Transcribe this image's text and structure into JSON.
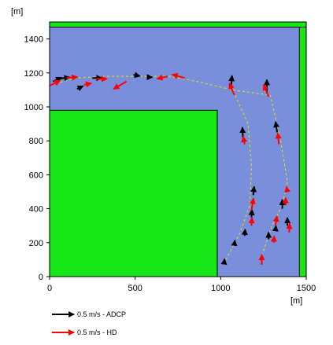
{
  "chart_data": {
    "type": "vector-field",
    "xunit": "[m]",
    "yunit": "[m]",
    "xlim": [
      0,
      1500
    ],
    "ylim": [
      0,
      1500
    ],
    "xticks": [
      0,
      500,
      1000,
      1500
    ],
    "yticks": [
      0,
      200,
      400,
      600,
      800,
      1000,
      1200,
      1400
    ],
    "domain": {
      "land_color": "#17e617",
      "water_color": "#7a8fdc",
      "land_blocks": [
        {
          "x": [
            0,
            980
          ],
          "y": [
            0,
            980
          ]
        },
        {
          "x": [
            1460,
            1500
          ],
          "y": [
            0,
            1500
          ]
        },
        {
          "x": [
            0,
            1500
          ],
          "y": [
            1470,
            1500
          ]
        }
      ]
    },
    "transects": [
      [
        [
          10,
          1130
        ],
        [
          150,
          1170
        ],
        [
          330,
          1180
        ],
        [
          520,
          1180
        ],
        [
          700,
          1180
        ],
        [
          860,
          1150
        ],
        [
          1070,
          1100
        ],
        [
          1280,
          1070
        ]
      ],
      [
        [
          1030,
          100
        ],
        [
          1110,
          250
        ],
        [
          1170,
          420
        ],
        [
          1180,
          650
        ],
        [
          1160,
          900
        ],
        [
          1075,
          1090
        ]
      ],
      [
        [
          1250,
          150
        ],
        [
          1300,
          300
        ],
        [
          1360,
          420
        ],
        [
          1390,
          560
        ],
        [
          1350,
          800
        ],
        [
          1290,
          1070
        ]
      ]
    ],
    "transect_color": "#e6e600",
    "series": [
      {
        "name": "0.5 m/s - ADCP",
        "color": "#000000",
        "vectors": [
          {
            "x": 20,
            "y": 1150,
            "u": 0.17,
            "v": 0.08
          },
          {
            "x": 50,
            "y": 1165,
            "u": 0.23,
            "v": 0.03
          },
          {
            "x": 160,
            "y": 1105,
            "u": 0.12,
            "v": 0.06
          },
          {
            "x": 250,
            "y": 1170,
            "u": 0.19,
            "v": 0.0
          },
          {
            "x": 490,
            "y": 1190,
            "u": 0.13,
            "v": -0.03
          },
          {
            "x": 580,
            "y": 1175,
            "u": 0.07,
            "v": 0.0
          },
          {
            "x": 1060,
            "y": 1110,
            "u": 0.02,
            "v": 0.25
          },
          {
            "x": 1270,
            "y": 1080,
            "u": 0.0,
            "v": 0.27
          },
          {
            "x": 1130,
            "y": 820,
            "u": -0.01,
            "v": 0.2
          },
          {
            "x": 1330,
            "y": 850,
            "u": -0.03,
            "v": 0.21
          },
          {
            "x": 1190,
            "y": 480,
            "u": 0.02,
            "v": 0.17
          },
          {
            "x": 1180,
            "y": 350,
            "u": 0.01,
            "v": 0.15
          },
          {
            "x": 1360,
            "y": 400,
            "u": 0.0,
            "v": 0.18
          },
          {
            "x": 1020,
            "y": 80,
            "u": 0.01,
            "v": 0.08
          },
          {
            "x": 1080,
            "y": 190,
            "u": 0.01,
            "v": 0.08
          },
          {
            "x": 1140,
            "y": 240,
            "u": 0.01,
            "v": 0.13
          },
          {
            "x": 1280,
            "y": 220,
            "u": 0.0,
            "v": 0.14
          },
          {
            "x": 1320,
            "y": 270,
            "u": 0.01,
            "v": 0.1
          },
          {
            "x": 1390,
            "y": 300,
            "u": 0.0,
            "v": 0.16
          }
        ]
      },
      {
        "name": "0.5 m/s - HD",
        "color": "#ff0000",
        "vectors": [
          {
            "x": 0,
            "y": 1125,
            "u": 0.21,
            "v": 0.1
          },
          {
            "x": 100,
            "y": 1170,
            "u": 0.21,
            "v": 0.02
          },
          {
            "x": 200,
            "y": 1130,
            "u": 0.15,
            "v": 0.03
          },
          {
            "x": 270,
            "y": 1165,
            "u": 0.22,
            "v": 0.0
          },
          {
            "x": 450,
            "y": 1150,
            "u": -0.26,
            "v": -0.15
          },
          {
            "x": 790,
            "y": 1170,
            "u": -0.25,
            "v": 0.07
          },
          {
            "x": 690,
            "y": 1180,
            "u": -0.21,
            "v": -0.05
          },
          {
            "x": 1080,
            "y": 1070,
            "u": -0.1,
            "v": 0.23
          },
          {
            "x": 1280,
            "y": 1060,
            "u": -0.1,
            "v": 0.24
          },
          {
            "x": 1140,
            "y": 780,
            "u": -0.03,
            "v": 0.15
          },
          {
            "x": 1340,
            "y": 780,
            "u": -0.02,
            "v": 0.22
          },
          {
            "x": 1180,
            "y": 390,
            "u": 0.04,
            "v": 0.24
          },
          {
            "x": 1180,
            "y": 300,
            "u": 0.01,
            "v": 0.16
          },
          {
            "x": 1320,
            "y": 300,
            "u": 0.03,
            "v": 0.19
          },
          {
            "x": 1390,
            "y": 500,
            "u": -0.02,
            "v": 0.1
          },
          {
            "x": 1380,
            "y": 420,
            "u": 0.0,
            "v": 0.15
          },
          {
            "x": 1240,
            "y": 70,
            "u": 0.0,
            "v": 0.2
          },
          {
            "x": 1310,
            "y": 200,
            "u": 0.01,
            "v": 0.13
          },
          {
            "x": 1400,
            "y": 260,
            "u": 0.01,
            "v": 0.18
          }
        ]
      }
    ],
    "legend_position": "below-left"
  }
}
